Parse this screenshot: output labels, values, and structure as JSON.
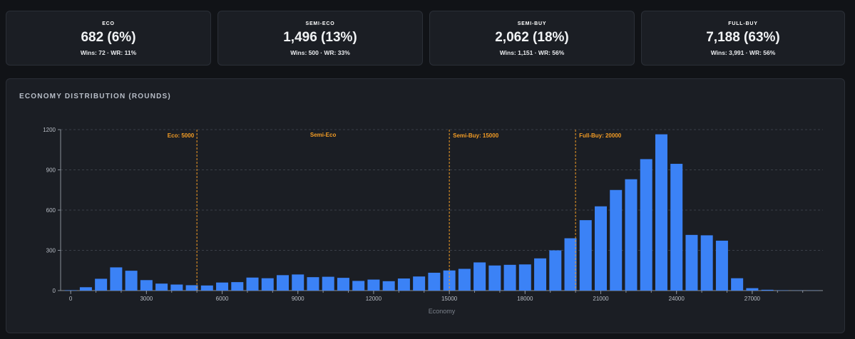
{
  "stats": [
    {
      "label": "ECO",
      "value": "682 (6%)",
      "sub": "Wins: 72 · WR: 11%"
    },
    {
      "label": "SEMI-ECO",
      "value": "1,496 (13%)",
      "sub": "Wins: 500 · WR: 33%"
    },
    {
      "label": "SEMI-BUY",
      "value": "2,062 (18%)",
      "sub": "Wins: 1,151 · WR: 56%"
    },
    {
      "label": "FULL-BUY",
      "value": "7,188 (63%)",
      "sub": "Wins: 3,991 · WR: 56%"
    }
  ],
  "panel": {
    "title": "ECONOMY DISTRIBUTION (ROUNDS)"
  },
  "colors": {
    "bar": "#3b82f6",
    "reference": "#f39c24",
    "grid": "#3a3f48",
    "axis": "#8a9099"
  },
  "chart_data": {
    "type": "bar",
    "title": "ECONOMY DISTRIBUTION (ROUNDS)",
    "xlabel": "Economy",
    "ylabel": "",
    "xlim": [
      -400,
      29800
    ],
    "ylim": [
      0,
      1200
    ],
    "x_ticks": [
      0,
      3000,
      6000,
      9000,
      12000,
      15000,
      18000,
      21000,
      24000,
      27000
    ],
    "y_ticks": [
      0,
      300,
      600,
      900,
      1200
    ],
    "bin_width": 600,
    "bin_centers": [
      0,
      600,
      1200,
      1800,
      2400,
      3000,
      3600,
      4200,
      4800,
      5400,
      6000,
      6600,
      7200,
      7800,
      8400,
      9000,
      9600,
      10200,
      10800,
      11400,
      12000,
      12600,
      13200,
      13800,
      14400,
      15000,
      15600,
      16200,
      16800,
      17400,
      18000,
      18600,
      19200,
      19800,
      20400,
      21000,
      21600,
      22200,
      22800,
      23400,
      24000,
      24600,
      25200,
      25800,
      26400,
      27000,
      27600,
      28200,
      28800,
      29400
    ],
    "values": [
      3,
      25,
      88,
      173,
      148,
      78,
      52,
      45,
      40,
      38,
      60,
      63,
      97,
      92,
      115,
      120,
      100,
      103,
      95,
      72,
      82,
      70,
      90,
      105,
      133,
      150,
      162,
      210,
      187,
      192,
      195,
      240,
      300,
      390,
      525,
      628,
      750,
      830,
      980,
      1165,
      945,
      415,
      412,
      372,
      92,
      18,
      6,
      2,
      1,
      1
    ],
    "reference_lines": [
      {
        "x": 5000,
        "label": "Eco: 5000",
        "label_side": "left"
      },
      {
        "x": 15000,
        "label": "Semi-Buy: 15000",
        "label_side": "right"
      },
      {
        "x": 20000,
        "label": "Full-Buy: 20000",
        "label_side": "right"
      }
    ],
    "region_labels": [
      {
        "x": 10000,
        "label": "Semi-Eco"
      }
    ]
  }
}
